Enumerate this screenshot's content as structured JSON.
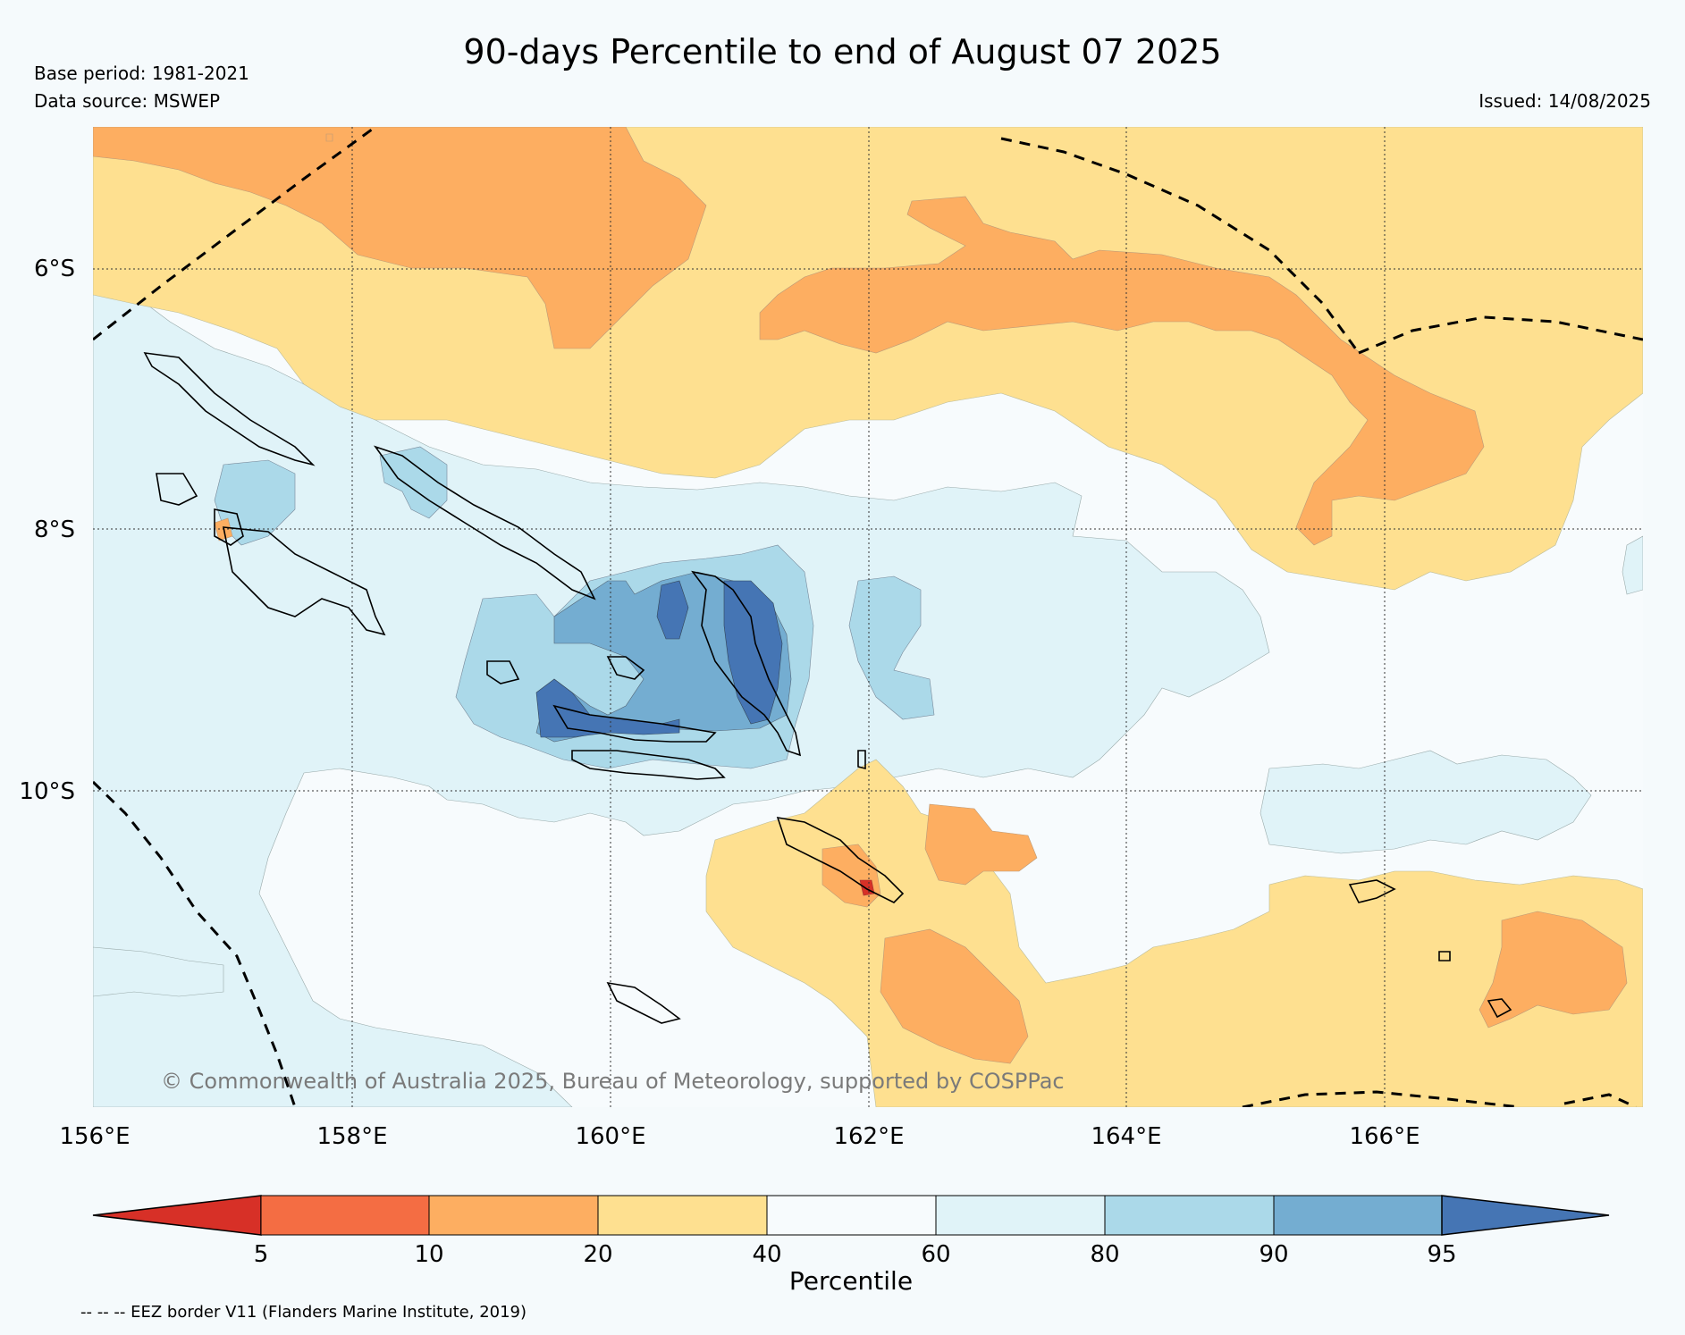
{
  "header": {
    "title": "90-days Percentile to end of August 07 2025",
    "base_period": "Base period: 1981-2021",
    "data_source": "Data source: MSWEP",
    "issued": "Issued: 14/08/2025"
  },
  "map": {
    "lat_labels": [
      "6°S",
      "8°S",
      "10°S"
    ],
    "lon_labels": [
      "156°E",
      "158°E",
      "160°E",
      "162°E",
      "164°E",
      "166°E"
    ],
    "credit": "© Commonwealth of Australia 2025, Bureau of Meteorology, supported by COSPPac",
    "fill_colors": {
      "below_5": "#d73027",
      "5_10": "#f46d43",
      "10_20": "#fdae61",
      "20_40": "#fee090",
      "40_60": "#f7fbfd",
      "60_80": "#e0f3f8",
      "80_90": "#abd9e9",
      "90_95": "#74add1",
      "above_95": "#4575b4"
    }
  },
  "colorbar": {
    "label": "Percentile",
    "ticks": [
      "5",
      "10",
      "20",
      "40",
      "60",
      "80",
      "90",
      "95"
    ],
    "colors": [
      "#d73027",
      "#f46d43",
      "#fdae61",
      "#fee090",
      "#f7fbfd",
      "#e0f3f8",
      "#abd9e9",
      "#74add1",
      "#4575b4"
    ]
  },
  "legend": {
    "eez_note": "-- -- -- EEZ border V11 (Flanders Marine Institute, 2019)"
  }
}
